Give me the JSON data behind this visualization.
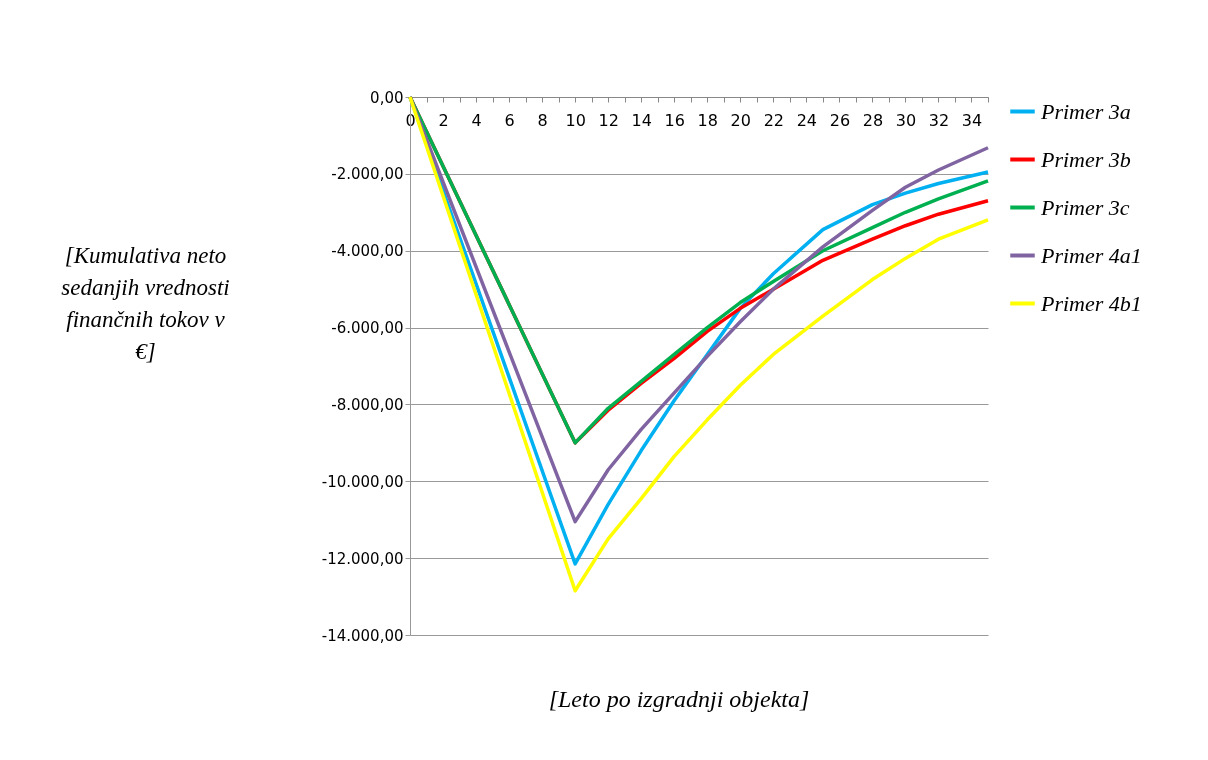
{
  "chart_data": {
    "type": "line",
    "xlabel": "[Leto po izgradnji objekta]",
    "ylabel": "[Kumulativa neto sedanjih vrednosti finančnih tokov v €]",
    "x": [
      0,
      10,
      12,
      14,
      16,
      18,
      20,
      22,
      25,
      28,
      30,
      32,
      35
    ],
    "series": [
      {
        "name": "Primer 3a",
        "color": "#00b0f0",
        "values": [
          0,
          -12150,
          -10600,
          -9200,
          -7900,
          -6700,
          -5500,
          -4600,
          -3450,
          -2800,
          -2500,
          -2250,
          -1950
        ]
      },
      {
        "name": "Primer 3b",
        "color": "#ff0000",
        "values": [
          0,
          -9000,
          -8150,
          -7450,
          -6800,
          -6100,
          -5500,
          -5000,
          -4250,
          -3700,
          -3350,
          -3050,
          -2700
        ]
      },
      {
        "name": "Primer 3c",
        "color": "#00b050",
        "values": [
          0,
          -9000,
          -8100,
          -7400,
          -6700,
          -6000,
          -5350,
          -4800,
          -4000,
          -3400,
          -3000,
          -2650,
          -2180
        ]
      },
      {
        "name": "Primer 4a1",
        "color": "#8064a2",
        "values": [
          0,
          -11050,
          -9700,
          -8650,
          -7700,
          -6750,
          -5850,
          -5000,
          -3900,
          -2950,
          -2350,
          -1900,
          -1320
        ]
      },
      {
        "name": "Primer 4b1",
        "color": "#ffff00",
        "values": [
          0,
          -12850,
          -11500,
          -10450,
          -9350,
          -8400,
          -7500,
          -6700,
          -5700,
          -4750,
          -4200,
          -3700,
          -3200
        ]
      }
    ],
    "xlim": [
      0,
      35
    ],
    "xticks": [
      0,
      {
        "value": 1,
        "label": null
      },
      2,
      {
        "value": 3,
        "label": null
      },
      4,
      {
        "value": 5,
        "label": null
      },
      6,
      {
        "value": 7,
        "label": null
      },
      8,
      {
        "value": 9,
        "label": null
      },
      10,
      {
        "value": 11,
        "label": null
      },
      12,
      {
        "value": 13,
        "label": null
      },
      14,
      {
        "value": 15,
        "label": null
      },
      16,
      {
        "value": 17,
        "label": null
      },
      18,
      {
        "value": 19,
        "label": null
      },
      20,
      {
        "value": 21,
        "label": null
      },
      22,
      {
        "value": 23,
        "label": null
      },
      24,
      {
        "value": 25,
        "label": null
      },
      26,
      {
        "value": 27,
        "label": null
      },
      28,
      {
        "value": 29,
        "label": null
      },
      30,
      {
        "value": 31,
        "label": null
      },
      32,
      {
        "value": 33,
        "label": null
      },
      34,
      {
        "value": 35,
        "label": null
      }
    ],
    "ylim": [
      -14000,
      0
    ],
    "yticks": [
      {
        "value": 0,
        "label": "0,00"
      },
      {
        "value": -2000,
        "label": "-2.000,00"
      },
      {
        "value": -4000,
        "label": "-4.000,00"
      },
      {
        "value": -6000,
        "label": "-6.000,00"
      },
      {
        "value": -8000,
        "label": "-8.000,00"
      },
      {
        "value": -10000,
        "label": "-10.000,00"
      },
      {
        "value": -12000,
        "label": "-12.000,00"
      },
      {
        "value": -14000,
        "label": "-14.000,00"
      }
    ],
    "grid": "y",
    "legend": "right",
    "marker": "none",
    "line_style": "solid"
  }
}
